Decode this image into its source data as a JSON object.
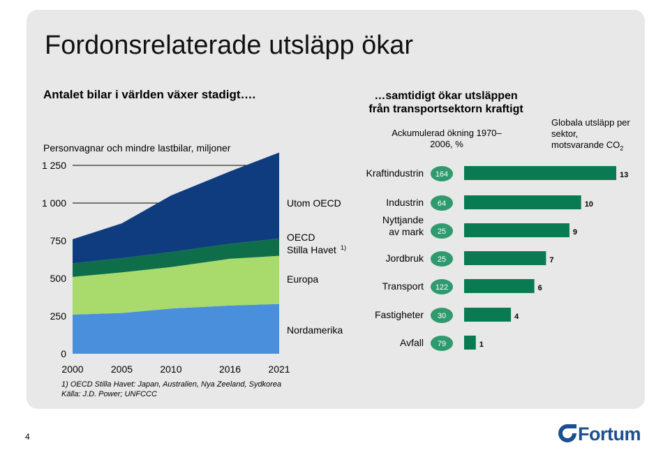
{
  "title": "Fordonsrelaterade utsläpp ökar",
  "left_chart": {
    "heading": "Antalet bilar i världen växer stadigt….",
    "subtitle": "Personvagnar och mindre lastbilar, miljoner",
    "footnote_1": "1) OECD Stilla Havet: Japan, Australien, Nya Zeeland, Sydkorea",
    "footnote_2": "Källa: J.D. Power; UNFCCC"
  },
  "right_chart": {
    "heading": "…samtidigt ökar utsläppen från transportsektorn kraftigt",
    "column_label": "Ackumulerad ökning 1970–2006, %",
    "column_label_2_line1": "Globala utsläpp per sektor,",
    "column_label_2_line2": "motsvarande CO",
    "column_label_2_sub": "2"
  },
  "page_number": "4",
  "logo_text": "Fortum",
  "colors": {
    "nordamerika": "#4a8fdc",
    "europa": "#a8db6b",
    "oecd_stilla_havet": "#0f6e4a",
    "utom_oecd": "#0f3c7e",
    "bar": "#0a7a52",
    "bubble": "#2e9a6e",
    "panel": "#e8e8e8"
  },
  "chart_data": [
    {
      "type": "area",
      "stacked": true,
      "x": [
        2000,
        2005,
        2010,
        2016,
        2021
      ],
      "ylim": [
        0,
        1250
      ],
      "yticks": [
        {
          "value": 0,
          "label": "0"
        },
        {
          "value": 250,
          "label": "250"
        },
        {
          "value": 500,
          "label": "500"
        },
        {
          "value": 750,
          "label": "750"
        },
        {
          "value": 1000,
          "label": "1 000"
        },
        {
          "value": 1250,
          "label": "1 250"
        }
      ],
      "xtick_labels": [
        "2000",
        "2005",
        "2010",
        "2016",
        "2021"
      ],
      "series": [
        {
          "name": "Nordamerika",
          "values": [
            260,
            270,
            300,
            320,
            330
          ]
        },
        {
          "name": "Europa",
          "values": [
            250,
            270,
            275,
            310,
            320
          ]
        },
        {
          "name": "OECD Stilla Havet",
          "values": [
            90,
            95,
            100,
            100,
            115
          ],
          "name_sup": "1)"
        },
        {
          "name": "Utom OECD",
          "values": [
            160,
            230,
            375,
            480,
            570
          ]
        }
      ],
      "legend_lines": [
        {
          "key": "utom",
          "text": "Utom OECD"
        },
        {
          "key": "oecd1",
          "text": "OECD"
        },
        {
          "key": "oecd2",
          "text": "Stilla Havet"
        },
        {
          "key": "europa",
          "text": "Europa"
        },
        {
          "key": "nord",
          "text": "Nordamerika"
        }
      ]
    },
    {
      "type": "bar",
      "orientation": "horizontal",
      "categories": [
        [
          "Kraftindustrin"
        ],
        [
          "Industrin"
        ],
        [
          "Nyttjande",
          "av mark"
        ],
        [
          "Jordbruk"
        ],
        [
          "Transport"
        ],
        [
          "Fastigheter"
        ],
        [
          "Avfall"
        ]
      ],
      "accumulated_increase_pct": [
        164,
        64,
        25,
        25,
        122,
        30,
        79
      ],
      "share_of_global_emissions": [
        13,
        10,
        9,
        7,
        6,
        4,
        1
      ]
    }
  ]
}
